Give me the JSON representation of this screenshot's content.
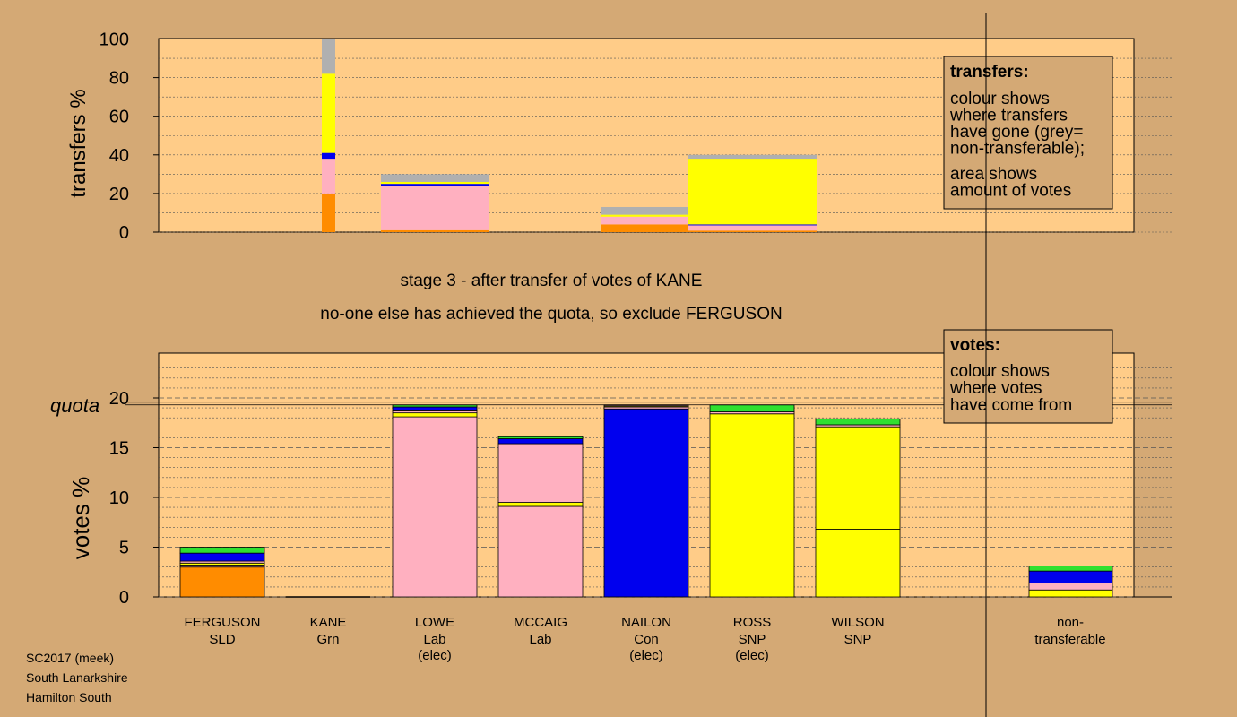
{
  "chart_data": {
    "type": "bar",
    "stage_title": "stage 3 - after transfer of votes of KANE",
    "stage_subtitle": "no-one else has achieved the quota, so exclude FERGUSON",
    "colors": {
      "SLD": "#ff8c00",
      "Grn": "#30e030",
      "Lab": "#ffb0c0",
      "Con": "#0000ee",
      "SNP": "#ffff00",
      "nontransferable": "#b0b0b0",
      "background": "#d4a975",
      "panel": "#ffcc88"
    },
    "top": {
      "ylabel": "transfers %",
      "ylim": [
        0,
        100
      ],
      "yticks": [
        0,
        20,
        40,
        60,
        80,
        100
      ],
      "legend": {
        "title": "transfers:",
        "lines1": [
          "colour shows",
          "where transfers",
          "have gone (grey=",
          "non-transferable);"
        ],
        "lines2": [
          "area shows",
          "amount of votes"
        ]
      },
      "transfers": [
        {
          "from": "KANE",
          "share": 1.5,
          "segments": [
            {
              "party": "SLD",
              "value": 20
            },
            {
              "party": "Lab",
              "value": 18
            },
            {
              "party": "Con",
              "value": 3
            },
            {
              "party": "SNP",
              "value": 41
            },
            {
              "party": "nontransferable",
              "value": 18
            }
          ]
        },
        {
          "from": "LOWE",
          "share": 10,
          "segments": [
            {
              "party": "SLD",
              "value": 1
            },
            {
              "party": "Lab",
              "value": 23
            },
            {
              "party": "Con",
              "value": 1
            },
            {
              "party": "SNP",
              "value": 1
            },
            {
              "party": "nontransferable",
              "value": 4
            }
          ]
        },
        {
          "from": "NAILON",
          "share": 10,
          "segments": [
            {
              "party": "SLD",
              "value": 4
            },
            {
              "party": "Lab",
              "value": 4
            },
            {
              "party": "SNP",
              "value": 1
            },
            {
              "party": "nontransferable",
              "value": 4
            }
          ]
        },
        {
          "from": "ROSS",
          "share": 15,
          "segments": [
            {
              "party": "SLD",
              "value": 0.8
            },
            {
              "party": "Lab",
              "value": 2.7
            },
            {
              "party": "Con",
              "value": 0.5
            },
            {
              "party": "SNP",
              "value": 34
            },
            {
              "party": "nontransferable",
              "value": 2
            }
          ]
        }
      ]
    },
    "bottom": {
      "ylabel": "votes %",
      "ylim": [
        0,
        25
      ],
      "yticks": [
        0,
        5,
        10,
        15,
        20
      ],
      "quota": 19.3,
      "quota_label": "quota",
      "legend": {
        "title": "votes:",
        "lines1": [
          "colour shows",
          "where votes",
          "have come from"
        ]
      },
      "candidates": [
        {
          "name": "FERGUSON",
          "party": "SLD",
          "elected": false,
          "segments": [
            {
              "party": "SLD",
              "value": 3.0
            },
            {
              "party": "Lab",
              "value": 0.2
            },
            {
              "party": "SNP",
              "value": 0.2
            },
            {
              "party": "Lab",
              "value": 0.2
            },
            {
              "party": "Con",
              "value": 0.8
            },
            {
              "party": "Grn",
              "value": 0.6
            }
          ]
        },
        {
          "name": "KANE",
          "party": "Grn",
          "elected": false,
          "segments": []
        },
        {
          "name": "LOWE",
          "party": "Lab",
          "elected": true,
          "segments": [
            {
              "party": "Lab",
              "value": 18.1
            },
            {
              "party": "SNP",
              "value": 0.4
            },
            {
              "party": "Lab",
              "value": 0.2
            },
            {
              "party": "Con",
              "value": 0.4
            },
            {
              "party": "Grn",
              "value": 0.2
            }
          ]
        },
        {
          "name": "MCCAIG",
          "party": "Lab",
          "elected": false,
          "segments": [
            {
              "party": "Lab",
              "value": 9.1
            },
            {
              "party": "SNP",
              "value": 0.4
            },
            {
              "party": "Lab",
              "value": 5.9
            },
            {
              "party": "Con",
              "value": 0.5
            },
            {
              "party": "Grn",
              "value": 0.2
            }
          ]
        },
        {
          "name": "NAILON",
          "party": "Con",
          "elected": true,
          "segments": [
            {
              "party": "Con",
              "value": 18.9
            },
            {
              "party": "Lab",
              "value": 0.2
            },
            {
              "party": "SNP",
              "value": 0.1
            },
            {
              "party": "Lab",
              "value": 0.1
            }
          ]
        },
        {
          "name": "ROSS",
          "party": "SNP",
          "elected": true,
          "segments": [
            {
              "party": "SNP",
              "value": 18.4
            },
            {
              "party": "Lab",
              "value": 0.2
            },
            {
              "party": "Grn",
              "value": 0.7
            }
          ]
        },
        {
          "name": "WILSON",
          "party": "SNP",
          "elected": false,
          "segments": [
            {
              "party": "SNP",
              "value": 6.8
            },
            {
              "party": "SNP",
              "value": 10.3
            },
            {
              "party": "Lab",
              "value": 0.2
            },
            {
              "party": "Grn",
              "value": 0.6
            }
          ]
        }
      ],
      "nontransferable": {
        "label_lines": [
          "non-",
          "transferable"
        ],
        "segments": [
          {
            "party": "SNP",
            "value": 0.7
          },
          {
            "party": "Lab",
            "value": 0.7
          },
          {
            "party": "Con",
            "value": 1.2
          },
          {
            "party": "Grn",
            "value": 0.5
          }
        ]
      }
    },
    "footer": [
      "SC2017 (meek)",
      "South Lanarkshire",
      "Hamilton South"
    ]
  }
}
